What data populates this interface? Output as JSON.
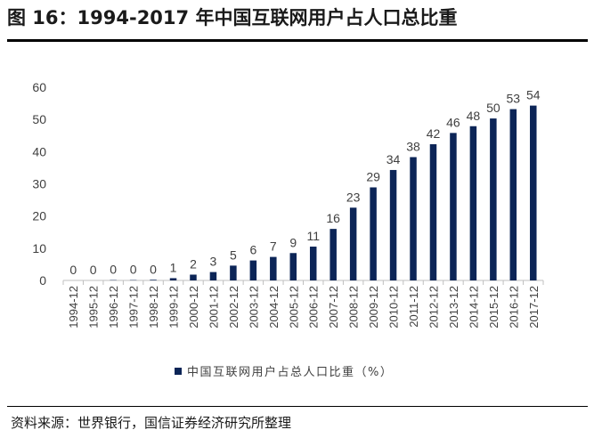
{
  "header": {
    "title": "图 16：1994-2017 年中国互联网用户占人口总比重"
  },
  "footer": {
    "source": "资料来源：世界银行，国信证券经济研究所整理"
  },
  "colors": {
    "bar": "#0c2557",
    "axis": "#bfbfbf",
    "text": "#404040"
  },
  "chart_data": {
    "type": "bar",
    "title": "图 16：1994-2017 年中国互联网用户占人口总比重",
    "xlabel": "",
    "ylabel": "",
    "ylim": [
      0,
      60
    ],
    "yticks": [
      "0",
      "10",
      "20",
      "30",
      "40",
      "50",
      "60"
    ],
    "grid": false,
    "legend": {
      "position": "bottom",
      "entries": [
        "中国互联网用户占总人口比重（%）"
      ]
    },
    "categories": [
      "1994-12",
      "1995-12",
      "1996-12",
      "1997-12",
      "1998-12",
      "1999-12",
      "2000-12",
      "2001-12",
      "2002-12",
      "2003-12",
      "2004-12",
      "2005-12",
      "2006-12",
      "2007-12",
      "2008-12",
      "2009-12",
      "2010-12",
      "2011-12",
      "2012-12",
      "2013-12",
      "2014-12",
      "2015-12",
      "2016-12",
      "2017-12"
    ],
    "series": [
      {
        "name": "中国互联网用户占总人口比重（%）",
        "values": [
          0.0,
          0.0,
          0.1,
          0.1,
          0.2,
          0.7,
          1.8,
          2.6,
          4.6,
          6.2,
          7.3,
          8.5,
          10.5,
          16.0,
          22.6,
          28.9,
          34.3,
          38.3,
          42.3,
          45.8,
          47.9,
          50.3,
          53.2,
          54.3
        ],
        "labels": [
          "0",
          "0",
          "0",
          "0",
          "0",
          "1",
          "2",
          "3",
          "5",
          "6",
          "7",
          "9",
          "11",
          "16",
          "23",
          "29",
          "34",
          "38",
          "42",
          "46",
          "48",
          "50",
          "53",
          "54"
        ]
      }
    ]
  }
}
